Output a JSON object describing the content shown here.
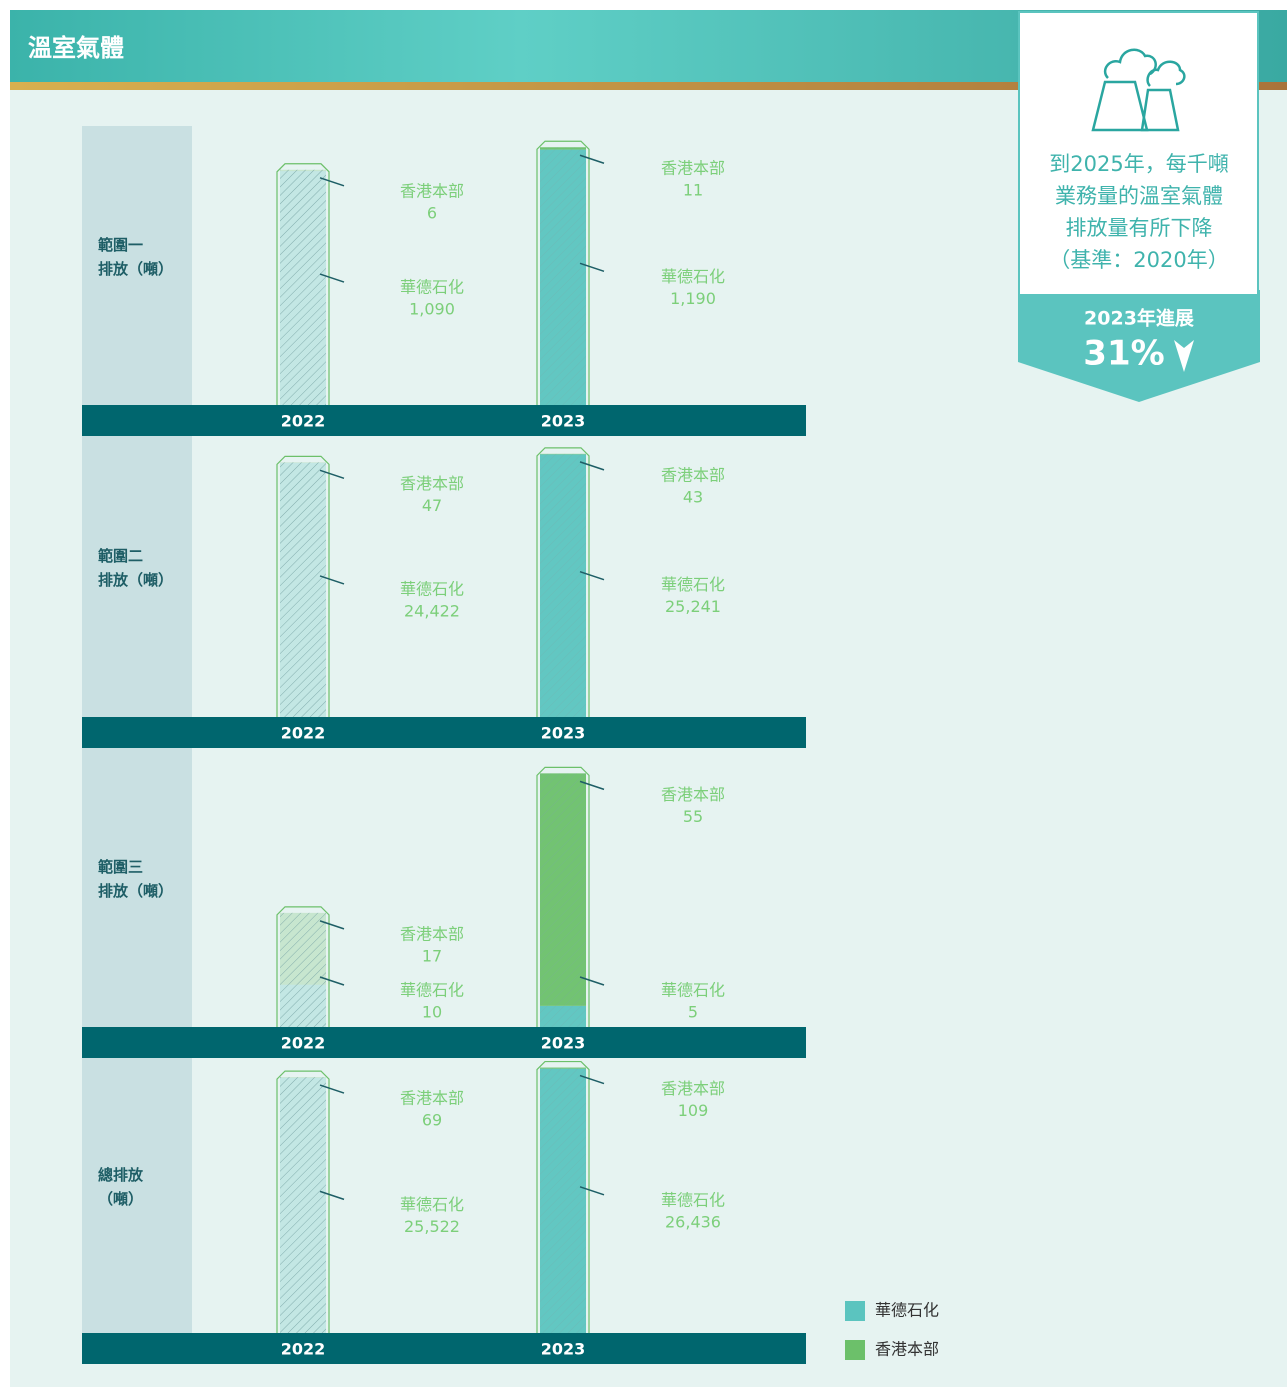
{
  "header": {
    "title": "溫室氣體"
  },
  "target": {
    "lines": [
      "到2025年，每千噸",
      "業務量的溫室氣體",
      "排放量有所下降",
      "（基準：2020年）"
    ],
    "progress_label": "2023年進展",
    "progress_value": "31%"
  },
  "chart_data": [
    {
      "type": "bar",
      "stacked": true,
      "ylabel": [
        "範圍一",
        "排放（噸）"
      ],
      "categories": [
        "2022",
        "2023"
      ],
      "ylim": [
        0,
        1300
      ],
      "series": [
        {
          "name": "華德石化",
          "color": "#5bc4bf",
          "values": [
            1090,
            1190
          ],
          "value_labels": [
            "1,090",
            "1,190"
          ]
        },
        {
          "name": "香港本部",
          "color": "#6cc06a",
          "values": [
            6,
            11
          ]
        }
      ]
    },
    {
      "type": "bar",
      "stacked": true,
      "ylabel": [
        "範圍二",
        "排放（噸）"
      ],
      "categories": [
        "2022",
        "2023"
      ],
      "ylim": [
        0,
        27000
      ],
      "series": [
        {
          "name": "華德石化",
          "color": "#5bc4bf",
          "values": [
            24422,
            25241
          ],
          "value_labels": [
            "24,422",
            "25,241"
          ]
        },
        {
          "name": "香港本部",
          "color": "#6cc06a",
          "values": [
            47,
            43
          ]
        }
      ]
    },
    {
      "type": "bar",
      "stacked": true,
      "ylabel": [
        "範圍三",
        "排放（噸）"
      ],
      "categories": [
        "2022",
        "2023"
      ],
      "ylim": [
        0,
        66
      ],
      "series": [
        {
          "name": "華德石化",
          "color": "#5bc4bf",
          "values": [
            10,
            5
          ]
        },
        {
          "name": "香港本部",
          "color": "#6cc06a",
          "values": [
            17,
            55
          ]
        }
      ]
    },
    {
      "type": "bar",
      "stacked": true,
      "ylabel": [
        "總排放",
        "（噸）"
      ],
      "categories": [
        "2022",
        "2023"
      ],
      "ylim": [
        0,
        27500
      ],
      "series": [
        {
          "name": "華德石化",
          "color": "#5bc4bf",
          "values": [
            25522,
            26436
          ],
          "value_labels": [
            "25,522",
            "26,436"
          ]
        },
        {
          "name": "香港本部",
          "color": "#6cc06a",
          "values": [
            69,
            109
          ]
        }
      ]
    }
  ]
}
